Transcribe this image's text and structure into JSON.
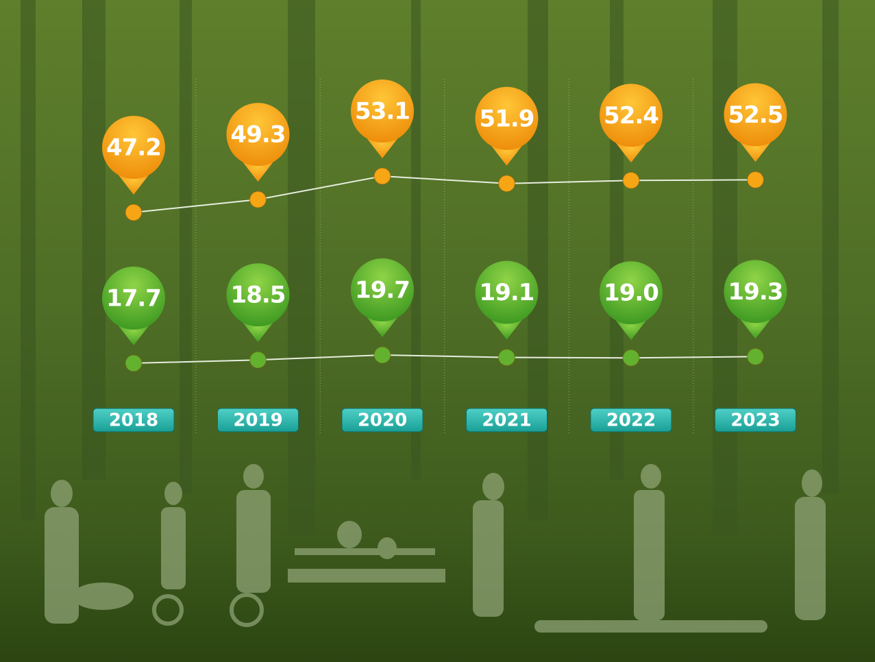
{
  "chart_data": {
    "type": "line",
    "categories": [
      "2018",
      "2019",
      "2020",
      "2021",
      "2022",
      "2023"
    ],
    "series": [
      {
        "color": "#f6a515",
        "values": [
          47.2,
          49.3,
          53.1,
          51.9,
          52.4,
          52.5
        ]
      },
      {
        "color": "#62b22f",
        "values": [
          17.7,
          18.5,
          19.7,
          19.1,
          19.0,
          19.3
        ],
        "value_labels": [
          "17.7",
          "18.5",
          "19.7",
          "19.1",
          "19.0",
          "19.3"
        ]
      }
    ]
  }
}
